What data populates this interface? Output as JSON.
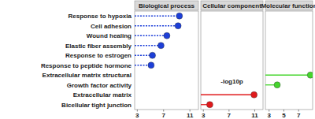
{
  "chart_data": {
    "type": "lollipop",
    "orientation": "horizontal",
    "xlabel": "-log10p",
    "categories": [
      "Response to hypoxia",
      "Cell adhesion",
      "Wound healing",
      "Elastic fiber assembly",
      "Response to estrogen",
      "Response to peptide hormone",
      "Extracellular matrix structural",
      "Growth factor activity",
      "Extracellular matrix",
      "Bicellular tight junction"
    ],
    "series": [
      {
        "name": "Biological process",
        "color": "#1d3fd8",
        "line_style": "dashed",
        "xlim": [
          2.6,
          12.3
        ],
        "xticks": [
          3,
          7,
          11
        ],
        "values": [
          9.4,
          9.2,
          7.5,
          6.6,
          5.3,
          5.1,
          null,
          null,
          null,
          null
        ]
      },
      {
        "name": "Cellular component",
        "color": "#e0191b",
        "line_style": "solid",
        "xlim": [
          2.6,
          12.3
        ],
        "xticks": [
          3,
          7,
          11
        ],
        "values": [
          null,
          null,
          null,
          null,
          null,
          null,
          null,
          null,
          10.9,
          4.0
        ]
      },
      {
        "name": "Molecular function",
        "color": "#45d52c",
        "line_style": "solid",
        "xlim": [
          2.5,
          8.9
        ],
        "xticks": [
          3,
          5,
          7
        ],
        "values": [
          null,
          null,
          null,
          null,
          null,
          null,
          8.6,
          4.1,
          null,
          null
        ]
      }
    ]
  }
}
